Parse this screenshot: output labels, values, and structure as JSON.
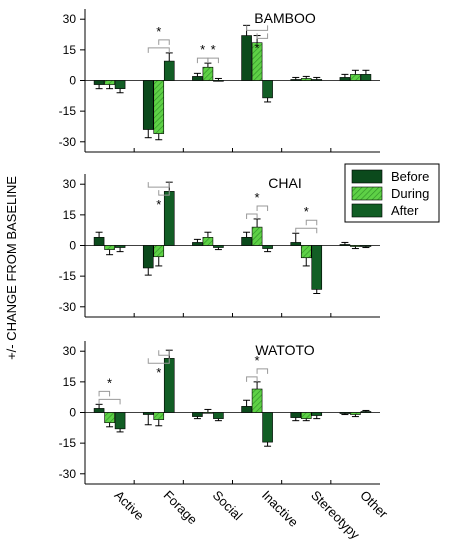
{
  "figure": {
    "ylabel": "+/- CHANGE FROM BASELINE",
    "legend": {
      "placement": "top-right",
      "items": [
        {
          "label": "Before",
          "pattern": "solid"
        },
        {
          "label": "During",
          "pattern": "hatched"
        },
        {
          "label": "After",
          "pattern": "dark-solid"
        }
      ]
    },
    "colors": {
      "before": "#0b4a1c",
      "during": "#5ed146",
      "after": "#125e25",
      "error_bar": "#000000",
      "sig_bracket": "#999999"
    }
  },
  "chart_data": [
    {
      "type": "bar",
      "title": "BAMBOO",
      "categories": [
        "Active",
        "Forage",
        "Social",
        "Inactive",
        "Stereotypy",
        "Other"
      ],
      "ylim": [
        -35,
        35
      ],
      "yticks": [
        -30,
        -15,
        0,
        15,
        30
      ],
      "series": [
        {
          "name": "Before",
          "values": [
            -2,
            -24,
            2,
            22,
            0.5,
            1.5
          ],
          "errors": [
            2,
            4,
            1.5,
            5,
            1,
            1.5
          ]
        },
        {
          "name": "During",
          "values": [
            -2,
            -26,
            6.5,
            18.5,
            1,
            3
          ],
          "errors": [
            2,
            3,
            2,
            3.5,
            1,
            2
          ]
        },
        {
          "name": "After",
          "values": [
            -4,
            9.5,
            0,
            -8.5,
            0.5,
            3
          ],
          "errors": [
            2,
            4,
            1,
            2,
            1,
            2
          ]
        }
      ],
      "significance": [
        {
          "category": "Forage",
          "pairs": [
            [
              0,
              2
            ],
            [
              1,
              2
            ]
          ],
          "side": "above",
          "label": "*"
        },
        {
          "category": "Social",
          "pairs": [
            [
              0,
              1
            ]
          ],
          "side": "above",
          "label": "*"
        },
        {
          "category": "Social",
          "pairs": [
            [
              1,
              2
            ]
          ],
          "side": "above",
          "label": "*"
        },
        {
          "category": "Inactive",
          "pairs": [
            [
              0,
              2
            ],
            [
              1,
              2
            ]
          ],
          "side": "below",
          "label": "*"
        }
      ]
    },
    {
      "type": "bar",
      "title": "CHAI",
      "categories": [
        "Active",
        "Forage",
        "Social",
        "Inactive",
        "Stereotypy",
        "Other"
      ],
      "ylim": [
        -35,
        35
      ],
      "yticks": [
        -30,
        -15,
        0,
        15,
        30
      ],
      "series": [
        {
          "name": "Before",
          "values": [
            4,
            -11,
            1.5,
            4,
            1.5,
            0.5
          ],
          "errors": [
            2.5,
            3.5,
            1.5,
            2.5,
            4.5,
            1
          ]
        },
        {
          "name": "During",
          "values": [
            -2,
            -5.5,
            4,
            9,
            -6,
            -0.5
          ],
          "errors": [
            2.5,
            4.5,
            2.5,
            4,
            4,
            1
          ]
        },
        {
          "name": "After",
          "values": [
            -1,
            26.5,
            -1,
            -1.5,
            -21.5,
            -0.5
          ],
          "errors": [
            2,
            4.5,
            1,
            1.5,
            2,
            0.5
          ]
        }
      ],
      "significance": [
        {
          "category": "Forage",
          "pairs": [
            [
              0,
              2
            ],
            [
              1,
              2
            ]
          ],
          "side": "below",
          "label": "*"
        },
        {
          "category": "Inactive",
          "pairs": [
            [
              0,
              1
            ],
            [
              1,
              2
            ]
          ],
          "side": "above",
          "label": "*"
        },
        {
          "category": "Stereotypy",
          "pairs": [
            [
              0,
              2
            ],
            [
              1,
              2
            ]
          ],
          "side": "above",
          "label": "*"
        }
      ]
    },
    {
      "type": "bar",
      "title": "WATOTO",
      "categories": [
        "Active",
        "Forage",
        "Social",
        "Inactive",
        "Stereotypy",
        "Other"
      ],
      "ylim": [
        -35,
        35
      ],
      "yticks": [
        -30,
        -15,
        0,
        15,
        30
      ],
      "series": [
        {
          "name": "Before",
          "values": [
            2,
            -1,
            -2,
            3,
            -2.5,
            -0.5
          ],
          "errors": [
            2,
            5,
            1,
            3,
            1.5,
            0.5
          ]
        },
        {
          "name": "During",
          "values": [
            -5,
            -3.5,
            0,
            11.5,
            -3,
            -1
          ],
          "errors": [
            2,
            3,
            1.5,
            3.5,
            1,
            1
          ]
        },
        {
          "name": "After",
          "values": [
            -8,
            26.5,
            -3,
            -14.5,
            -1.5,
            0.5
          ],
          "errors": [
            1.5,
            4,
            1,
            2,
            1.5,
            0.5
          ]
        }
      ],
      "significance": [
        {
          "category": "Active",
          "pairs": [
            [
              0,
              2
            ],
            [
              0,
              1
            ]
          ],
          "side": "above",
          "label": "*"
        },
        {
          "category": "Forage",
          "pairs": [
            [
              1,
              2
            ],
            [
              0,
              2
            ]
          ],
          "side": "below",
          "label": "*"
        },
        {
          "category": "Inactive",
          "pairs": [
            [
              0,
              1
            ],
            [
              1,
              2
            ]
          ],
          "side": "above",
          "label": "*"
        }
      ]
    }
  ]
}
